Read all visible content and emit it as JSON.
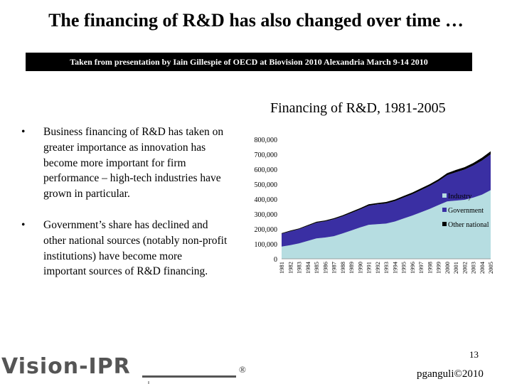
{
  "slide": {
    "title": "The financing of R&D has also changed over time …",
    "banner": "Taken from presentation by Iain Gillespie of OECD at Biovision 2010 Alexandria March 9-14 2010",
    "bullets": [
      "Business financing of R&D has taken on greater importance as innovation has become more important for firm performance – high-tech industries have grown in particular.",
      "Government’s share has declined and other national sources (notably non-profit institutions) have become more important sources of R&D financing."
    ],
    "bullet_symbol": "•",
    "page_number": "13",
    "footer_credit": "pganguli©2010",
    "logo_text": "Vision-IPR",
    "logo_mark": "®"
  },
  "chart_data": {
    "type": "area",
    "title": "Financing of R&D, 1981-2005",
    "x": [
      "1981",
      "1982",
      "1983",
      "1984",
      "1985",
      "1986",
      "1987",
      "1988",
      "1989",
      "1990",
      "1991",
      "1992",
      "1993",
      "1994",
      "1995",
      "1996",
      "1997",
      "1998",
      "1999",
      "2000",
      "2001",
      "2002",
      "2003",
      "2004",
      "2005"
    ],
    "ylim": [
      0,
      800000
    ],
    "yticks": [
      "0",
      "100,000",
      "200,000",
      "300,000",
      "400,000",
      "500,000",
      "600,000",
      "700,000",
      "800,000"
    ],
    "stacked": true,
    "legend_position": "right",
    "series": [
      {
        "name": "Industry",
        "color": "#b6dde1",
        "values": [
          82000,
          92000,
          104000,
          120000,
          137000,
          143000,
          152000,
          170000,
          190000,
          210000,
          228000,
          232000,
          236000,
          250000,
          270000,
          290000,
          312000,
          335000,
          360000,
          385000,
          390000,
          395000,
          410000,
          430000,
          460000
        ]
      },
      {
        "name": "Government",
        "color": "#3a2fa3",
        "values": [
          86000,
          92000,
          95000,
          100000,
          105000,
          108000,
          113000,
          115000,
          117000,
          121000,
          128000,
          133000,
          135000,
          137000,
          140000,
          143000,
          148000,
          153000,
          160000,
          175000,
          190000,
          203000,
          215000,
          228000,
          240000
        ]
      },
      {
        "name": "Other national",
        "color": "#000000",
        "values": [
          4000,
          5000,
          5000,
          6000,
          6000,
          6000,
          7000,
          7000,
          8000,
          8000,
          9000,
          9000,
          10000,
          10000,
          11000,
          11000,
          12000,
          12000,
          13000,
          14000,
          15000,
          16000,
          17000,
          19000,
          20000
        ]
      }
    ]
  }
}
